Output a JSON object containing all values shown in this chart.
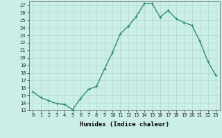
{
  "x": [
    0,
    1,
    2,
    3,
    4,
    5,
    6,
    7,
    8,
    9,
    10,
    11,
    12,
    13,
    14,
    15,
    16,
    17,
    18,
    19,
    20,
    21,
    22,
    23
  ],
  "y": [
    15.5,
    14.7,
    14.3,
    13.9,
    13.8,
    13.1,
    14.6,
    15.8,
    16.2,
    18.5,
    20.7,
    23.2,
    24.2,
    25.5,
    27.2,
    27.2,
    25.4,
    26.3,
    25.2,
    24.7,
    24.3,
    22.2,
    19.5,
    17.7
  ],
  "line_color": "#2e8b7a",
  "marker": "+",
  "bg_color": "#cceee8",
  "grid_color": "#b0d8d0",
  "xlabel": "Humidex (Indice chaleur)",
  "xlim": [
    -0.5,
    23.5
  ],
  "ylim": [
    13,
    27.5
  ],
  "yticks": [
    13,
    14,
    15,
    16,
    17,
    18,
    19,
    20,
    21,
    22,
    23,
    24,
    25,
    26,
    27
  ],
  "xticks": [
    0,
    1,
    2,
    3,
    4,
    5,
    6,
    7,
    8,
    9,
    10,
    11,
    12,
    13,
    14,
    15,
    16,
    17,
    18,
    19,
    20,
    21,
    22,
    23
  ],
  "tick_fontsize": 5.0,
  "label_fontsize": 6.5,
  "linewidth": 1.0,
  "markersize": 3.5,
  "markeredgewidth": 0.8
}
